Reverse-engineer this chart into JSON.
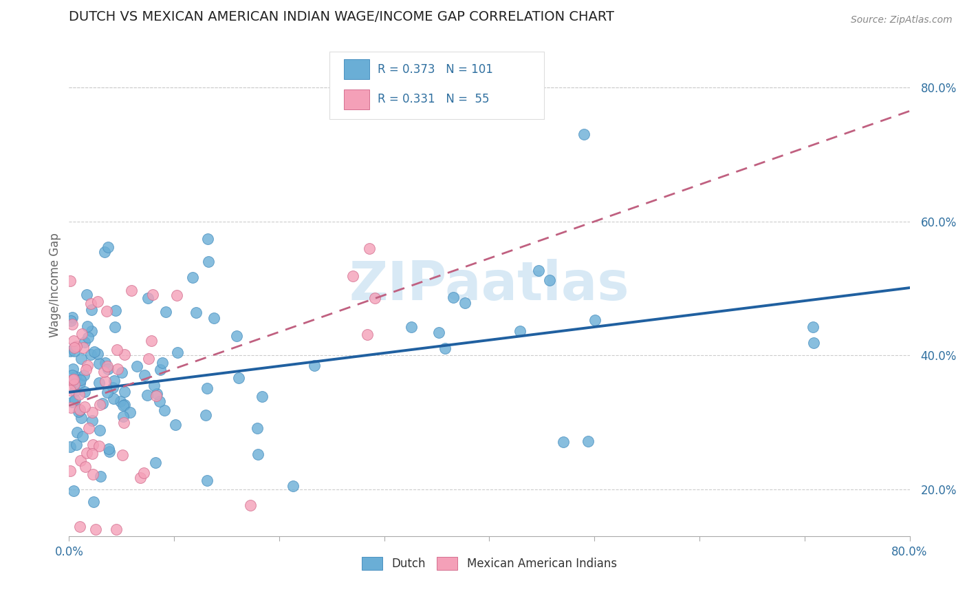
{
  "title": "DUTCH VS MEXICAN AMERICAN INDIAN WAGE/INCOME GAP CORRELATION CHART",
  "source": "Source: ZipAtlas.com",
  "ylabel_label": "Wage/Income Gap",
  "xlim": [
    0.0,
    0.8
  ],
  "ylim": [
    0.13,
    0.88
  ],
  "xtick_labels_shown": [
    "0.0%",
    "80.0%"
  ],
  "xtick_values": [
    0.0,
    0.1,
    0.2,
    0.3,
    0.4,
    0.5,
    0.6,
    0.7,
    0.8
  ],
  "xtick_label_values": [
    0.0,
    0.8
  ],
  "ytick_labels": [
    "20.0%",
    "40.0%",
    "60.0%",
    "80.0%"
  ],
  "ytick_values": [
    0.2,
    0.4,
    0.6,
    0.8
  ],
  "dutch_color": "#6aaed6",
  "dutch_edge": "#4a90c0",
  "mexican_color": "#f4a0b8",
  "mexican_edge": "#d47090",
  "trend_dutch_color": "#2060a0",
  "trend_mexican_color": "#c06080",
  "R_dutch": 0.373,
  "N_dutch": 101,
  "R_mexican": 0.331,
  "N_mexican": 55,
  "watermark": "ZIPaatlas",
  "legend_dutch": "Dutch",
  "legend_mexican": "Mexican American Indians",
  "dutch_intercept": 0.345,
  "dutch_slope": 0.195,
  "mexican_intercept": 0.325,
  "mexican_slope": 0.55
}
